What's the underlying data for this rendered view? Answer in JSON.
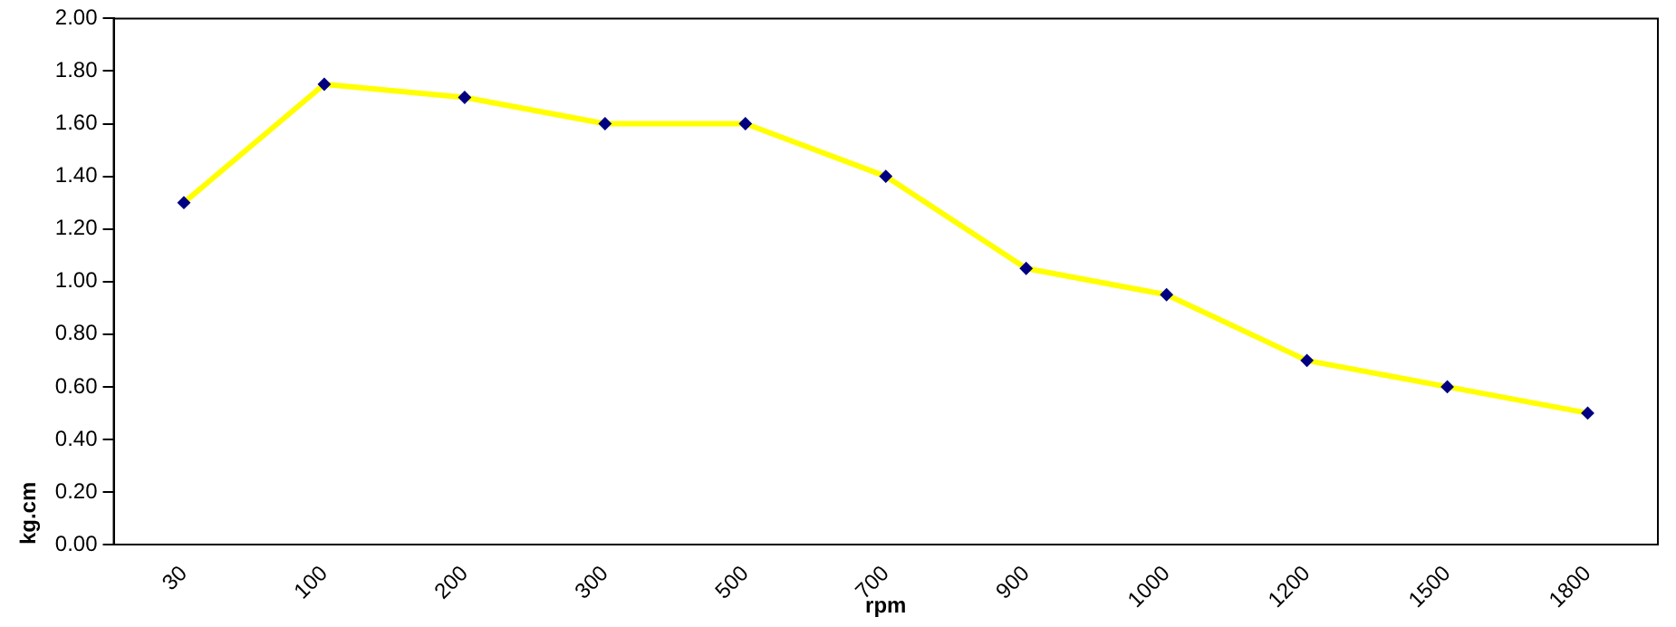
{
  "chart_data": {
    "type": "line",
    "xlabel": "rpm",
    "ylabel": "kg.cm",
    "categories": [
      "30",
      "100",
      "200",
      "300",
      "500",
      "700",
      "900",
      "1000",
      "1200",
      "1500",
      "1800"
    ],
    "series": [
      {
        "color": "#ffff00",
        "values": [
          1.3,
          1.75,
          1.7,
          1.6,
          1.6,
          1.4,
          1.05,
          0.95,
          0.7,
          0.6,
          0.5
        ]
      }
    ],
    "ylim": [
      0,
      2
    ],
    "yticks": [
      {
        "value": 0,
        "label": "0.00"
      },
      {
        "value": 0.2,
        "label": "0.20"
      },
      {
        "value": 0.4,
        "label": "0.40"
      },
      {
        "value": 0.6,
        "label": "0.60"
      },
      {
        "value": 0.8,
        "label": "0.80"
      },
      {
        "value": 1,
        "label": "1.00"
      },
      {
        "value": 1.2,
        "label": "1.20"
      },
      {
        "value": 1.4,
        "label": "1.40"
      },
      {
        "value": 1.6,
        "label": "1.60"
      },
      {
        "value": 1.8,
        "label": "1.80"
      },
      {
        "value": 2,
        "label": "2.00"
      }
    ],
    "grid": false,
    "legend": false,
    "marker": "diamond",
    "line_style": "solid"
  }
}
